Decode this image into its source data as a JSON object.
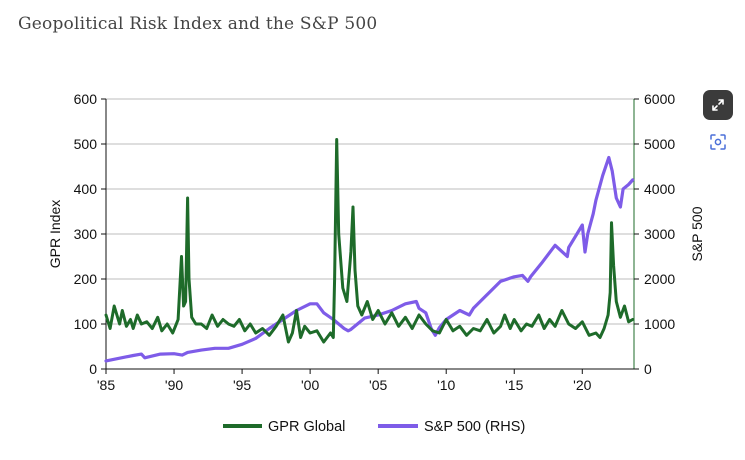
{
  "page": {
    "title": "Geopolitical Risk Index and the S&P 500"
  },
  "controls": {
    "expand_icon": "expand-icon",
    "scan_icon": "text-scan-icon"
  },
  "chart_data": {
    "type": "line",
    "title": "Geopolitical Risk Index and the S&P 500",
    "xlabel": "",
    "ylabel": "GPR Index",
    "y2label": "S&P 500",
    "xlim": [
      1985,
      2023.8
    ],
    "ylim": [
      0,
      600
    ],
    "y2lim": [
      0,
      6000
    ],
    "x_ticks": [
      1985,
      1990,
      1995,
      2000,
      2005,
      2010,
      2015,
      2020
    ],
    "x_tick_labels": [
      "'85",
      "'90",
      "'95",
      "'00",
      "'05",
      "'10",
      "'15",
      "'20"
    ],
    "y_ticks": [
      0,
      100,
      200,
      300,
      400,
      500,
      600
    ],
    "y_tick_labels": [
      "0",
      "100",
      "200",
      "300",
      "400",
      "500",
      "600"
    ],
    "y2_ticks": [
      0,
      1000,
      2000,
      3000,
      4000,
      5000,
      6000
    ],
    "y2_tick_labels": [
      "0",
      "1000",
      "2000",
      "3000",
      "4000",
      "5000",
      "6000"
    ],
    "grid": true,
    "legend_position": "bottom",
    "series": [
      {
        "name": "GPR Global",
        "axis": "left",
        "color": "#1e6b2a",
        "x": [
          1985,
          1985.3,
          1985.6,
          1986,
          1986.2,
          1986.5,
          1986.8,
          1987,
          1987.3,
          1987.6,
          1988,
          1988.4,
          1988.8,
          1989.1,
          1989.5,
          1989.9,
          1990.1,
          1990.3,
          1990.55,
          1990.7,
          1990.85,
          1991.0,
          1991.1,
          1991.3,
          1991.6,
          1992,
          1992.4,
          1992.8,
          1993.2,
          1993.6,
          1994,
          1994.4,
          1994.8,
          1995.2,
          1995.6,
          1996,
          1996.5,
          1997,
          1997.5,
          1998,
          1998.4,
          1998.7,
          1999,
          1999.3,
          1999.6,
          2000,
          2000.5,
          2001,
          2001.5,
          2001.7,
          2001.8,
          2001.95,
          2002.1,
          2002.4,
          2002.7,
          2003.0,
          2003.15,
          2003.3,
          2003.5,
          2003.8,
          2004.2,
          2004.6,
          2005,
          2005.5,
          2006,
          2006.5,
          2007,
          2007.5,
          2008,
          2008.5,
          2009,
          2009.5,
          2010,
          2010.5,
          2011,
          2011.5,
          2012,
          2012.5,
          2013,
          2013.5,
          2014,
          2014.3,
          2014.7,
          2015,
          2015.5,
          2015.9,
          2016.3,
          2016.8,
          2017.2,
          2017.6,
          2018,
          2018.5,
          2019,
          2019.5,
          2020,
          2020.5,
          2021,
          2021.3,
          2021.6,
          2021.9,
          2022.05,
          2022.15,
          2022.3,
          2022.5,
          2022.8,
          2023.1,
          2023.4,
          2023.7
        ],
        "values": [
          120,
          90,
          140,
          100,
          130,
          95,
          110,
          90,
          120,
          100,
          105,
          90,
          115,
          85,
          100,
          80,
          95,
          110,
          250,
          140,
          150,
          380,
          200,
          115,
          100,
          100,
          90,
          120,
          95,
          110,
          100,
          95,
          110,
          85,
          100,
          80,
          90,
          75,
          95,
          120,
          60,
          80,
          130,
          70,
          95,
          80,
          85,
          60,
          80,
          70,
          200,
          510,
          300,
          180,
          150,
          260,
          360,
          220,
          140,
          120,
          150,
          110,
          130,
          100,
          125,
          95,
          115,
          90,
          120,
          100,
          85,
          80,
          110,
          85,
          95,
          75,
          90,
          85,
          110,
          80,
          95,
          120,
          90,
          110,
          85,
          100,
          95,
          120,
          90,
          110,
          95,
          130,
          100,
          90,
          105,
          75,
          80,
          70,
          90,
          120,
          170,
          325,
          230,
          150,
          115,
          140,
          105,
          110
        ]
      },
      {
        "name": "S&P 500 (RHS)",
        "axis": "right",
        "color": "#7e5ce8",
        "x": [
          1985,
          1986,
          1987,
          1987.6,
          1987.85,
          1988,
          1989,
          1990,
          1990.6,
          1991,
          1992,
          1993,
          1994,
          1995,
          1996,
          1997,
          1998,
          1999,
          2000,
          2000.5,
          2001,
          2001.7,
          2002.5,
          2002.8,
          2003,
          2004,
          2005,
          2006,
          2007,
          2007.8,
          2008,
          2008.5,
          2008.9,
          2009.2,
          2009.5,
          2010,
          2011,
          2011.7,
          2012,
          2013,
          2014,
          2015,
          2015.6,
          2016,
          2016.2,
          2017,
          2018,
          2018.9,
          2019,
          2019.5,
          2020,
          2020.2,
          2020.4,
          2020.8,
          2021,
          2021.5,
          2021.95,
          2022.2,
          2022.5,
          2022.8,
          2023,
          2023.4,
          2023.7
        ],
        "values": [
          180,
          240,
          300,
          330,
          250,
          260,
          330,
          340,
          310,
          370,
          420,
          460,
          460,
          550,
          680,
          900,
          1100,
          1300,
          1450,
          1450,
          1250,
          1100,
          900,
          850,
          880,
          1130,
          1200,
          1300,
          1450,
          1500,
          1350,
          1250,
          900,
          750,
          920,
          1100,
          1300,
          1200,
          1350,
          1650,
          1950,
          2050,
          2080,
          1950,
          2050,
          2350,
          2750,
          2500,
          2700,
          2950,
          3200,
          2600,
          3000,
          3450,
          3750,
          4300,
          4700,
          4400,
          3800,
          3600,
          4000,
          4100,
          4200
        ]
      }
    ]
  }
}
